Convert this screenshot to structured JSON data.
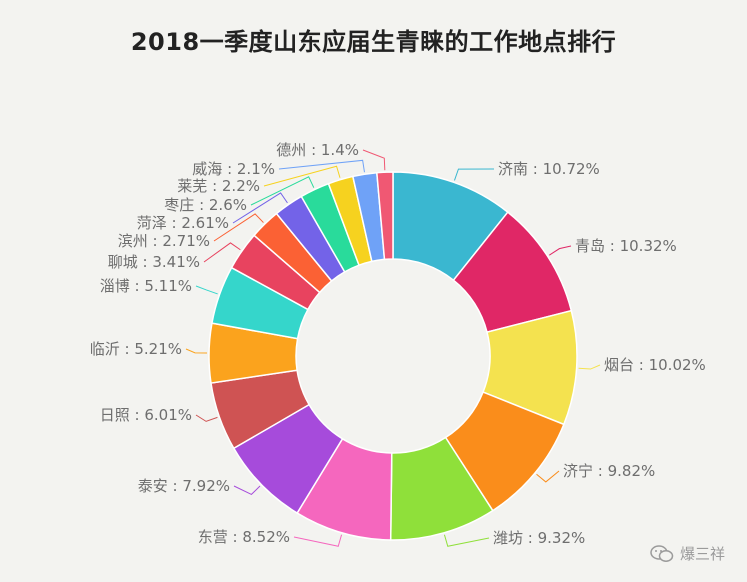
{
  "chart_data": {
    "type": "pie",
    "variant": "donut",
    "title": "2018一季度山东应届生青睐的工作地点排行",
    "slices": [
      {
        "label": "济南",
        "value": 10.72,
        "display": "10.72%",
        "color": "#3ab7d0"
      },
      {
        "label": "青岛",
        "value": 10.32,
        "display": "10.32%",
        "color": "#e02766"
      },
      {
        "label": "烟台",
        "value": 10.02,
        "display": "10.02%",
        "color": "#f4e24f"
      },
      {
        "label": "济宁",
        "value": 9.82,
        "display": "9.82%",
        "color": "#fa8d1b"
      },
      {
        "label": "潍坊",
        "value": 9.32,
        "display": "9.32%",
        "color": "#8fe03a"
      },
      {
        "label": "东营",
        "value": 8.52,
        "display": "8.52%",
        "color": "#f567be"
      },
      {
        "label": "泰安",
        "value": 7.92,
        "display": "7.92%",
        "color": "#a64bdb"
      },
      {
        "label": "日照",
        "value": 6.01,
        "display": "6.01%",
        "color": "#cf5353"
      },
      {
        "label": "临沂",
        "value": 5.21,
        "display": "5.21%",
        "color": "#fba31d"
      },
      {
        "label": "淄博",
        "value": 5.11,
        "display": "5.11%",
        "color": "#35d6cb"
      },
      {
        "label": "聊城",
        "value": 3.41,
        "display": "3.41%",
        "color": "#e8435f"
      },
      {
        "label": "滨州",
        "value": 2.71,
        "display": "2.71%",
        "color": "#fb6134"
      },
      {
        "label": "菏泽",
        "value": 2.61,
        "display": "2.61%",
        "color": "#7363e8"
      },
      {
        "label": "枣庄",
        "value": 2.6,
        "display": "2.6%",
        "color": "#29db9b"
      },
      {
        "label": "莱芜",
        "value": 2.2,
        "display": "2.2%",
        "color": "#f6d21f"
      },
      {
        "label": "威海",
        "value": 2.1,
        "display": "2.1%",
        "color": "#6fa2f7"
      },
      {
        "label": "德州",
        "value": 1.4,
        "display": "1.4%",
        "color": "#f05873"
      }
    ],
    "label_separator": " : ",
    "legend": false,
    "start_angle": "top, clockwise"
  },
  "watermark": {
    "text": "爆三祥",
    "icon": "wechat-icon"
  }
}
